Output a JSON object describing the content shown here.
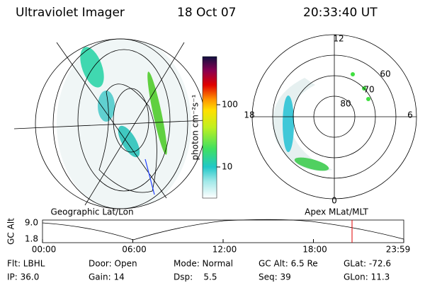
{
  "header": {
    "title": "Ultraviolet Imager",
    "date": "18 Oct 07",
    "time": "20:33:40 UT"
  },
  "colorbar": {
    "label": "photon cm⁻²s⁻¹",
    "ticks": [
      "100",
      "10"
    ]
  },
  "polar_plot": {
    "labels": [
      "12",
      "0",
      "18",
      "6",
      "60",
      "70",
      "80"
    ]
  },
  "panel_titles": [
    "Geographic Lat/Lon",
    "Apex MLat/MLT"
  ],
  "altitude_plot": {
    "axis_label": "GC Alt",
    "y_ticks": [
      "9.0",
      "1.8"
    ],
    "x_ticks": [
      "00:00",
      "06:00",
      "12:00",
      "18:00",
      "23:59"
    ]
  },
  "info": {
    "rows": [
      [
        "Flt: LBHL",
        "Door: Open",
        "Mode: Normal",
        "GC Alt: 6.5 Re",
        "GLat: -72.6"
      ],
      [
        "IP: 36.0",
        "Gain: 14",
        "Dsp:    5.5",
        "Seq: 39",
        "GLon: 11.3"
      ]
    ]
  }
}
